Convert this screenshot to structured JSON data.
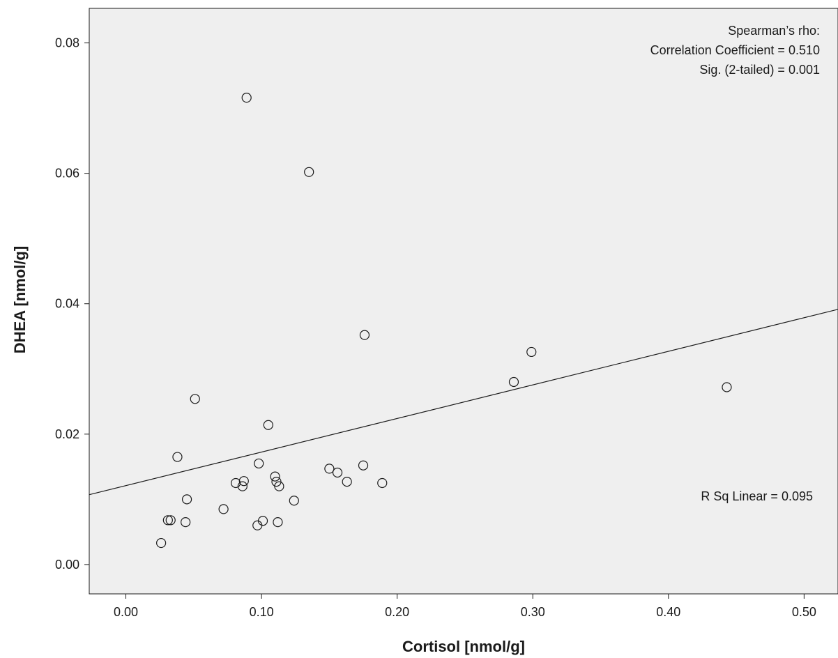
{
  "chart_data": {
    "type": "scatter",
    "title": "",
    "xlabel": "Cortisol [nmol/g]",
    "ylabel": "DHEA [nmol/g]",
    "xlim": [
      -0.027,
      0.525
    ],
    "ylim": [
      -0.0045,
      0.0853
    ],
    "xticks": [
      0.0,
      0.1,
      0.2,
      0.3,
      0.4,
      0.5
    ],
    "xtick_labels": [
      "0.00",
      "0.10",
      "0.20",
      "0.30",
      "0.40",
      "0.50"
    ],
    "yticks": [
      0.0,
      0.02,
      0.04,
      0.06,
      0.08
    ],
    "ytick_labels": [
      "0.00",
      "0.02",
      "0.04",
      "0.06",
      "0.08"
    ],
    "grid": false,
    "plot_background": "#efefef",
    "marker": "open-circle",
    "points": [
      {
        "x": 0.089,
        "y": 0.0716
      },
      {
        "x": 0.135,
        "y": 0.0602
      },
      {
        "x": 0.176,
        "y": 0.0352
      },
      {
        "x": 0.299,
        "y": 0.0326
      },
      {
        "x": 0.286,
        "y": 0.028
      },
      {
        "x": 0.443,
        "y": 0.0272
      },
      {
        "x": 0.051,
        "y": 0.0254
      },
      {
        "x": 0.105,
        "y": 0.0214
      },
      {
        "x": 0.038,
        "y": 0.0165
      },
      {
        "x": 0.098,
        "y": 0.0155
      },
      {
        "x": 0.175,
        "y": 0.0152
      },
      {
        "x": 0.15,
        "y": 0.0147
      },
      {
        "x": 0.156,
        "y": 0.0141
      },
      {
        "x": 0.11,
        "y": 0.0135
      },
      {
        "x": 0.087,
        "y": 0.0128
      },
      {
        "x": 0.163,
        "y": 0.0127
      },
      {
        "x": 0.111,
        "y": 0.0127
      },
      {
        "x": 0.081,
        "y": 0.0125
      },
      {
        "x": 0.189,
        "y": 0.0125
      },
      {
        "x": 0.086,
        "y": 0.012
      },
      {
        "x": 0.113,
        "y": 0.012
      },
      {
        "x": 0.045,
        "y": 0.01
      },
      {
        "x": 0.124,
        "y": 0.0098
      },
      {
        "x": 0.072,
        "y": 0.0085
      },
      {
        "x": 0.031,
        "y": 0.0068
      },
      {
        "x": 0.033,
        "y": 0.0068
      },
      {
        "x": 0.101,
        "y": 0.0067
      },
      {
        "x": 0.044,
        "y": 0.0065
      },
      {
        "x": 0.112,
        "y": 0.0065
      },
      {
        "x": 0.097,
        "y": 0.006
      },
      {
        "x": 0.026,
        "y": 0.0033
      }
    ],
    "fit_line": {
      "type": "linear",
      "intercept": 0.0121,
      "slope": 0.0515
    },
    "annotations": {
      "spearman_title": "Spearman’s rho:",
      "correlation": "Correlation Coefficient = 0.510",
      "significance": "Sig. (2-tailed) = 0.001",
      "r_squared": "R Sq Linear = 0.095"
    }
  }
}
